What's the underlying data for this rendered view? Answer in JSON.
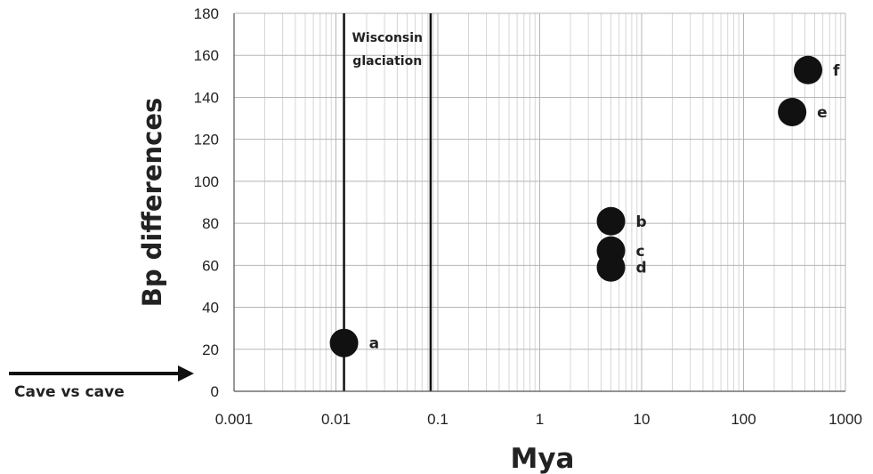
{
  "chart_data": {
    "type": "scatter",
    "xlabel": "Mya",
    "ylabel": "Bp differences",
    "xscale": "log",
    "xlim": [
      0.001,
      1000
    ],
    "ylim": [
      0,
      180
    ],
    "xticks": [
      "0.001",
      "0.01",
      "0.1",
      "1",
      "10",
      "100",
      "1000"
    ],
    "yticks": [
      "0",
      "20",
      "40",
      "60",
      "80",
      "100",
      "120",
      "140",
      "160",
      "180"
    ],
    "grid": true,
    "points": [
      {
        "label": "a",
        "x": 0.012,
        "y": 23
      },
      {
        "label": "b",
        "x": 5,
        "y": 81
      },
      {
        "label": "c",
        "x": 5,
        "y": 67
      },
      {
        "label": "d",
        "x": 5,
        "y": 59
      },
      {
        "label": "e",
        "x": 300,
        "y": 133
      },
      {
        "label": "f",
        "x": 430,
        "y": 153
      }
    ],
    "reference_lines": [
      {
        "x": 0.012
      },
      {
        "x": 0.085
      }
    ],
    "annotation": {
      "line1": "Wisconsin",
      "line2": "glaciation"
    },
    "side_label": "Cave vs cave",
    "marker_color": "#111111",
    "grid_color": "#d6d6d6"
  }
}
